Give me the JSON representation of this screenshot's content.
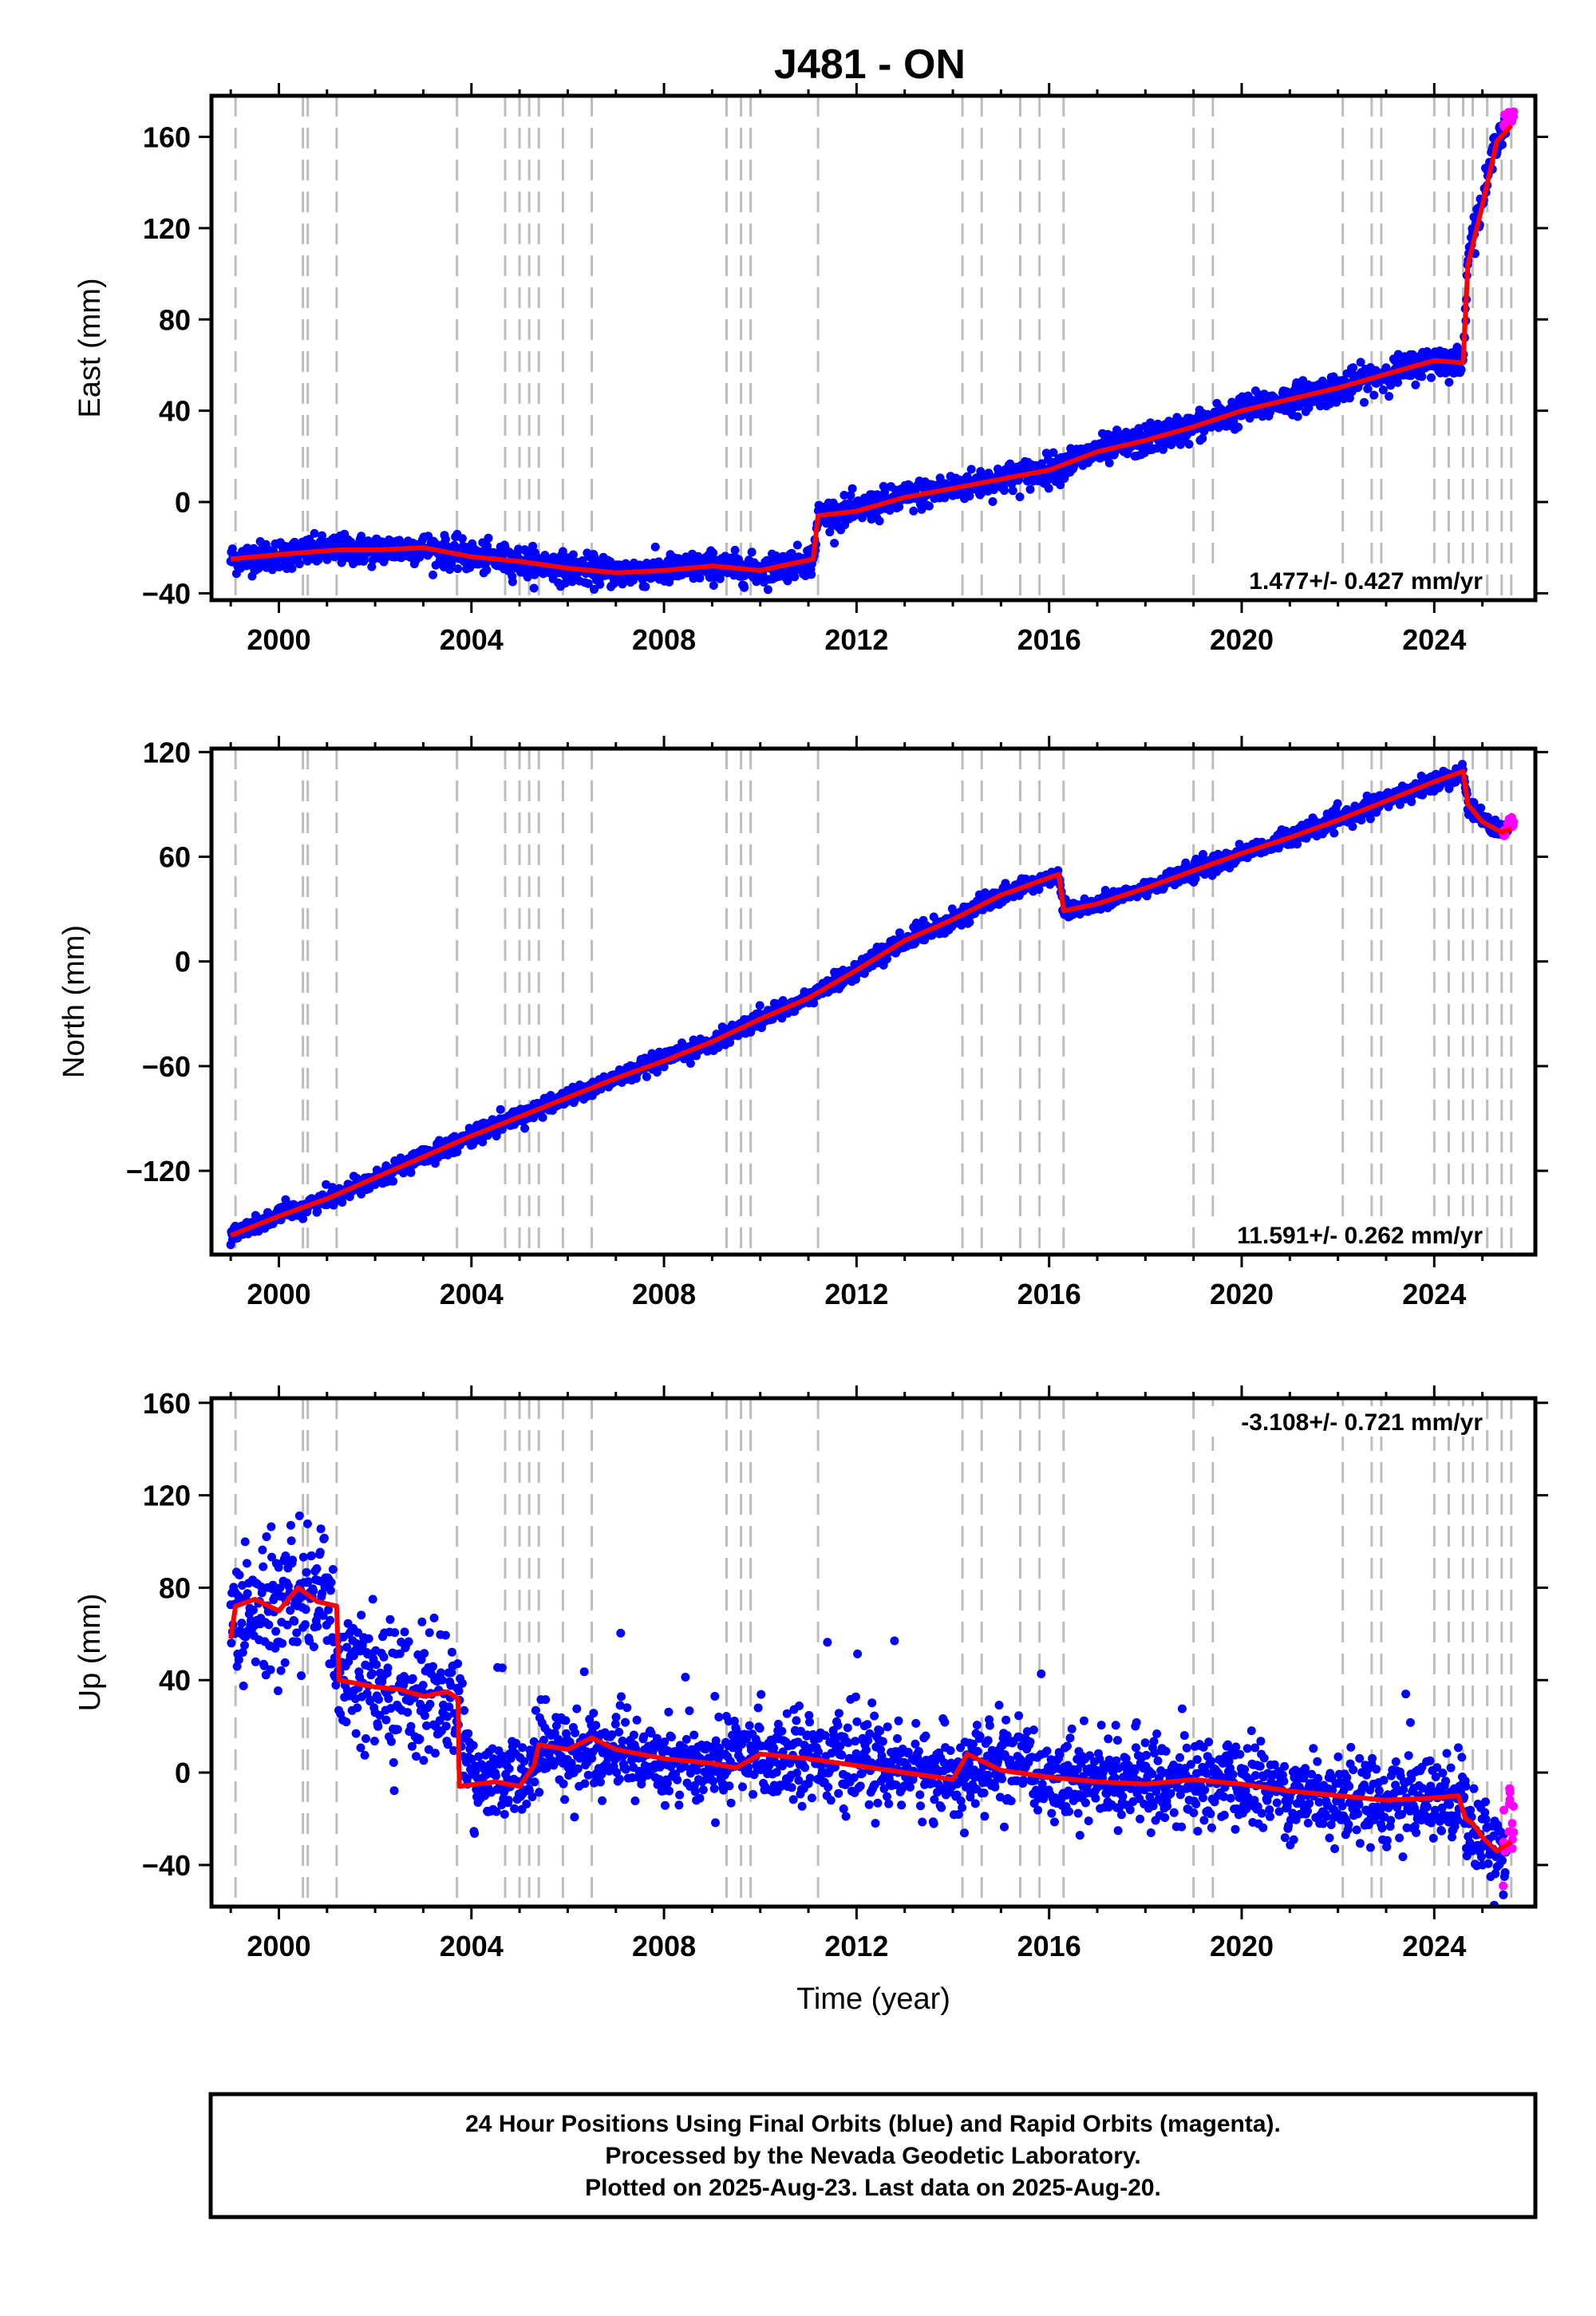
{
  "title": "J481 - ON",
  "chart_data": [
    {
      "type": "scatter",
      "panel": "east",
      "ylabel": "East (mm)",
      "xlabel": "",
      "xlim": [
        1998.6,
        2026.1
      ],
      "ylim": [
        -43,
        178
      ],
      "xticks": [
        2000,
        2004,
        2008,
        2012,
        2016,
        2020,
        2024
      ],
      "yticks": [
        -40,
        0,
        40,
        80,
        120,
        160
      ],
      "ytick_labels": [
        "−40",
        "0",
        "40",
        "80",
        "120",
        "160"
      ],
      "rate_text": "1.477+/- 0.427 mm/yr",
      "rate_position": "bottom-right",
      "series": [
        {
          "name": "Final Orbits",
          "color": "#0000ff",
          "x": [
            1999.0,
            2000.0,
            2001.2,
            2002.0,
            2003.0,
            2004.0,
            2005.0,
            2006.0,
            2007.0,
            2008.0,
            2009.0,
            2010.0,
            2011.1,
            2011.2,
            2012.0,
            2013.0,
            2014.0,
            2015.0,
            2016.0,
            2017.0,
            2018.0,
            2019.0,
            2020.0,
            2021.0,
            2022.0,
            2023.0,
            2024.0,
            2024.6,
            2024.7,
            2025.0,
            2025.3,
            2025.5
          ],
          "y": [
            -25,
            -23,
            -21,
            -21,
            -20,
            -24,
            -26,
            -29,
            -31,
            -30,
            -28,
            -30,
            -25,
            -6,
            -4,
            2,
            6,
            10,
            14,
            22,
            27,
            33,
            40,
            45,
            50,
            56,
            62,
            61,
            110,
            132,
            160,
            166
          ]
        },
        {
          "name": "Rapid Orbits",
          "color": "#ff00ff",
          "x": [
            2025.45,
            2025.55,
            2025.63
          ],
          "y": [
            164,
            168,
            170
          ]
        },
        {
          "name": "Model",
          "color": "#ff0000",
          "x": [
            1999.0,
            2000.0,
            2001.2,
            2002.0,
            2003.0,
            2004.0,
            2005.0,
            2006.0,
            2007.0,
            2008.0,
            2009.0,
            2010.0,
            2011.1,
            2011.2,
            2012.0,
            2013.0,
            2014.0,
            2015.0,
            2016.0,
            2017.0,
            2018.0,
            2019.0,
            2020.0,
            2021.0,
            2022.0,
            2023.0,
            2024.0,
            2024.6,
            2024.7,
            2025.0,
            2025.3,
            2025.6
          ],
          "y": [
            -25,
            -23,
            -21,
            -21,
            -20,
            -24,
            -26,
            -29,
            -31,
            -30,
            -28,
            -30,
            -25,
            -6,
            -4,
            2,
            6,
            10,
            14,
            22,
            27,
            33,
            40,
            45,
            50,
            56,
            62,
            61,
            104,
            130,
            158,
            165
          ]
        }
      ]
    },
    {
      "type": "scatter",
      "panel": "north",
      "ylabel": "North (mm)",
      "xlabel": "",
      "xlim": [
        1998.6,
        2026.1
      ],
      "ylim": [
        -168,
        122
      ],
      "xticks": [
        2000,
        2004,
        2008,
        2012,
        2016,
        2020,
        2024
      ],
      "yticks": [
        -120,
        -60,
        0,
        60,
        120
      ],
      "ytick_labels": [
        "−120",
        "−60",
        "0",
        "60",
        "120"
      ],
      "rate_text": "11.591+/- 0.262 mm/yr",
      "rate_position": "bottom-right",
      "series": [
        {
          "name": "Final Orbits",
          "color": "#0000ff",
          "x": [
            1999.0,
            2000.0,
            2001.0,
            2002.0,
            2003.0,
            2004.0,
            2005.0,
            2006.0,
            2007.0,
            2008.0,
            2009.0,
            2010.0,
            2011.0,
            2012.0,
            2013.0,
            2014.0,
            2015.0,
            2016.2,
            2016.3,
            2017.0,
            2018.0,
            2019.0,
            2020.0,
            2021.0,
            2022.0,
            2023.0,
            2024.0,
            2024.6,
            2024.7,
            2025.0,
            2025.4,
            2025.55
          ],
          "y": [
            -157,
            -146,
            -136,
            -124,
            -112,
            -100,
            -89,
            -78,
            -67,
            -57,
            -46,
            -33,
            -21,
            -5,
            12,
            24,
            38,
            50,
            29,
            33,
            42,
            52,
            62,
            71,
            81,
            92,
            103,
            109,
            90,
            82,
            75,
            78
          ]
        },
        {
          "name": "Rapid Orbits",
          "color": "#ff00ff",
          "x": [
            2025.45,
            2025.55,
            2025.63
          ],
          "y": [
            74,
            79,
            81
          ]
        },
        {
          "name": "Model",
          "color": "#ff0000",
          "x": [
            1999.0,
            2000.0,
            2001.0,
            2002.0,
            2003.0,
            2004.0,
            2005.0,
            2006.0,
            2007.0,
            2008.0,
            2009.0,
            2010.0,
            2011.0,
            2012.0,
            2013.0,
            2014.0,
            2015.0,
            2016.2,
            2016.3,
            2017.0,
            2018.0,
            2019.0,
            2020.0,
            2021.0,
            2022.0,
            2023.0,
            2024.0,
            2024.6,
            2024.7,
            2025.0,
            2025.4,
            2025.6
          ],
          "y": [
            -157,
            -146,
            -136,
            -124,
            -112,
            -100,
            -89,
            -78,
            -67,
            -57,
            -46,
            -33,
            -21,
            -5,
            12,
            24,
            38,
            50,
            29,
            33,
            42,
            52,
            62,
            71,
            81,
            92,
            103,
            109,
            90,
            80,
            74,
            76
          ]
        }
      ]
    },
    {
      "type": "scatter",
      "panel": "up",
      "ylabel": "Up (mm)",
      "xlabel": "Time (year)",
      "xlim": [
        1998.6,
        2026.1
      ],
      "ylim": [
        -58,
        162
      ],
      "xticks": [
        2000,
        2004,
        2008,
        2012,
        2016,
        2020,
        2024
      ],
      "yticks": [
        -40,
        0,
        40,
        80,
        120,
        160
      ],
      "ytick_labels": [
        "−40",
        "0",
        "40",
        "80",
        "120",
        "160"
      ],
      "rate_text": "-3.108+/- 0.721 mm/yr",
      "rate_position": "top-right",
      "series": [
        {
          "name": "Final Orbits",
          "color": "#0000ff",
          "x": [
            1999.0,
            1999.5,
            2000.0,
            2000.5,
            2001.0,
            2001.2,
            2002.0,
            2003.0,
            2003.3,
            2003.7,
            2004.0,
            2005.0,
            2005.5,
            2006.0,
            2007.0,
            2008.0,
            2009.0,
            2010.0,
            2011.0,
            2012.0,
            2013.0,
            2014.0,
            2015.0,
            2016.0,
            2017.0,
            2018.0,
            2019.0,
            2020.0,
            2021.0,
            2022.0,
            2023.0,
            2024.0,
            2024.6,
            2024.7,
            2025.0,
            2025.5
          ],
          "y": [
            68,
            72,
            70,
            78,
            74,
            42,
            38,
            34,
            33,
            34,
            -5,
            -4,
            10,
            9,
            8,
            6,
            3,
            8,
            8,
            4,
            2,
            -2,
            4,
            -1,
            -3,
            -3,
            -5,
            -4,
            -9,
            -10,
            -12,
            -12,
            -9,
            -22,
            -28,
            -34
          ]
        },
        {
          "name": "Rapid Orbits",
          "color": "#ff00ff",
          "x": [
            2025.45,
            2025.55,
            2025.63
          ],
          "y": [
            -30,
            -20,
            -26
          ]
        },
        {
          "name": "Model",
          "color": "#ff0000",
          "x": [
            1999.0,
            1999.1,
            1999.5,
            2000.0,
            2000.4,
            2000.8,
            2001.2,
            2001.25,
            2002.0,
            2002.5,
            2003.0,
            2003.5,
            2003.72,
            2003.75,
            2004.5,
            2005.0,
            2005.3,
            2005.4,
            2006.0,
            2006.5,
            2007.0,
            2008.0,
            2009.0,
            2009.5,
            2010.0,
            2011.0,
            2012.0,
            2013.0,
            2014.0,
            2014.3,
            2015.0,
            2016.0,
            2017.0,
            2018.0,
            2019.0,
            2020.0,
            2021.0,
            2022.0,
            2023.0,
            2024.0,
            2024.5,
            2024.65,
            2024.8,
            2025.0,
            2025.3,
            2025.6
          ],
          "y": [
            58,
            72,
            75,
            70,
            80,
            74,
            72,
            40,
            37,
            36,
            33,
            35,
            32,
            -6,
            -4,
            -6,
            3,
            12,
            10,
            15,
            10,
            6,
            4,
            2,
            8,
            6,
            3,
            0,
            -3,
            8,
            1,
            -2,
            -4,
            -5,
            -3,
            -5,
            -8,
            -10,
            -12,
            -11,
            -10,
            -20,
            -22,
            -28,
            -34,
            -30
          ]
        }
      ]
    }
  ],
  "footer": {
    "line1": "24 Hour Positions Using Final Orbits (blue) and Rapid Orbits (magenta).",
    "line2": "Processed by the Nevada Geodetic Laboratory.",
    "line3": "Plotted on 2025-Aug-23. Last data on 2025-Aug-20."
  },
  "event_lines_years": [
    1999.1,
    2000.5,
    2000.6,
    2001.2,
    2003.7,
    2004.7,
    2005.0,
    2005.2,
    2005.4,
    2005.9,
    2006.5,
    2009.3,
    2009.6,
    2009.8,
    2011.2,
    2014.2,
    2014.6,
    2015.4,
    2015.8,
    2016.3,
    2019.0,
    2019.4,
    2022.1,
    2022.7,
    2022.9,
    2024.0,
    2024.3,
    2024.6,
    2024.8,
    2025.1,
    2025.4,
    2025.6
  ]
}
